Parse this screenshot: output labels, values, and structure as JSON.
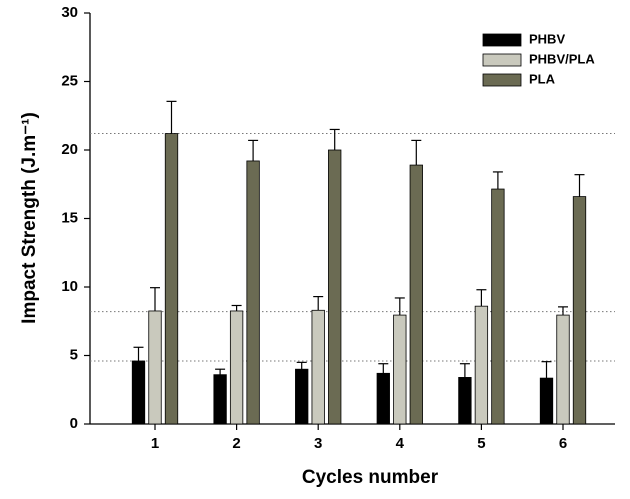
{
  "chart_data": {
    "type": "bar",
    "x_label": "Cycles number",
    "y_label": "Impact Strength (J.m⁻¹)",
    "categories": [
      "1",
      "2",
      "3",
      "4",
      "5",
      "6"
    ],
    "series": [
      {
        "name": "PHBV",
        "color": "#000000",
        "values": [
          4.6,
          3.6,
          4.0,
          3.7,
          3.4,
          3.35
        ],
        "errors": [
          1.0,
          0.4,
          0.5,
          0.7,
          1.0,
          1.2
        ]
      },
      {
        "name": "PHBV/PLA",
        "color": "#c9c9bd",
        "values": [
          8.25,
          8.25,
          8.3,
          7.95,
          8.6,
          7.95
        ],
        "errors": [
          1.7,
          0.4,
          1.0,
          1.25,
          1.2,
          0.6
        ]
      },
      {
        "name": "PLA",
        "color": "#6b6b53",
        "values": [
          21.2,
          19.2,
          20.0,
          18.9,
          17.15,
          16.6
        ],
        "errors": [
          2.35,
          1.5,
          1.5,
          1.8,
          1.25,
          1.6
        ]
      }
    ],
    "reference_lines": [
      21.2,
      8.2,
      4.6
    ],
    "ylim": [
      0,
      30
    ],
    "yticks": [
      0,
      5,
      10,
      15,
      20,
      25,
      30
    ],
    "legend": "upper right"
  }
}
